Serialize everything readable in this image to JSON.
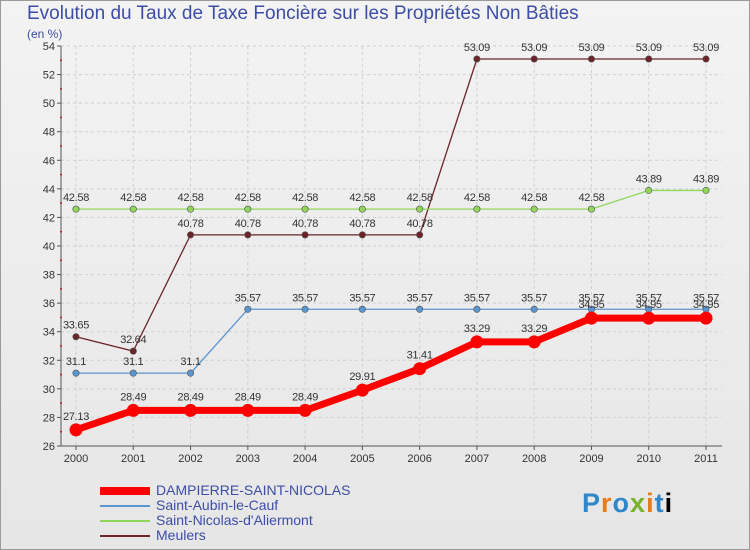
{
  "chart_data": {
    "type": "line",
    "title": "Evolution du Taux de Taxe Foncière sur les Propriétés Non Bâties",
    "ylabel": "(en %)",
    "xlabel": "",
    "ylim": [
      26,
      54
    ],
    "yticks": [
      26,
      28,
      30,
      32,
      34,
      36,
      38,
      40,
      42,
      44,
      46,
      48,
      50,
      52,
      54
    ],
    "categories": [
      "2000",
      "2001",
      "2002",
      "2003",
      "2004",
      "2005",
      "2006",
      "2007",
      "2008",
      "2009",
      "2010",
      "2011"
    ],
    "series": [
      {
        "name": "Meulers",
        "color": "#6b2428",
        "values": [
          33.65,
          32.64,
          40.78,
          40.78,
          40.78,
          40.78,
          40.78,
          53.09,
          53.09,
          53.09,
          53.09,
          53.09
        ],
        "labels": [
          "33.65",
          "32.64",
          "40.78",
          "40.78",
          "40.78",
          "40.78",
          "40.78",
          "53.09",
          "53.09",
          "53.09",
          "53.09",
          "53.09"
        ]
      },
      {
        "name": "Saint-Nicolas-d'Aliermont",
        "color": "#90d65a",
        "values": [
          42.58,
          42.58,
          42.58,
          42.58,
          42.58,
          42.58,
          42.58,
          42.58,
          42.58,
          42.58,
          43.89,
          43.89
        ],
        "labels": [
          "42.58",
          "42.58",
          "42.58",
          "42.58",
          "42.58",
          "42.58",
          "42.58",
          "42.58",
          "42.58",
          "42.58",
          "43.89",
          "43.89"
        ]
      },
      {
        "name": "Saint-Aubin-le-Cauf",
        "color": "#5a95cf",
        "values": [
          31.1,
          31.1,
          31.1,
          35.57,
          35.57,
          35.57,
          35.57,
          35.57,
          35.57,
          35.57,
          35.57,
          35.57
        ],
        "labels": [
          "31.1",
          "31.1",
          "31.1",
          "35.57",
          "35.57",
          "35.57",
          "35.57",
          "35.57",
          "35.57",
          "35.57",
          "35.57",
          "35.57"
        ]
      },
      {
        "name": "DAMPIERRE-SAINT-NICOLAS",
        "color": "#ff0000",
        "values": [
          27.13,
          28.49,
          28.49,
          28.49,
          28.49,
          29.91,
          31.41,
          33.29,
          33.29,
          34.95,
          34.95,
          34.95
        ],
        "labels": [
          "27.13",
          "28.49",
          "28.49",
          "28.49",
          "28.49",
          "29.91",
          "31.41",
          "33.29",
          "33.29",
          "34.95",
          "34.95",
          "34.95"
        ]
      }
    ],
    "legend": [
      {
        "name": "DAMPIERRE-SAINT-NICOLAS",
        "color": "#ff0000"
      },
      {
        "name": "Saint-Aubin-le-Cauf",
        "color": "#5a95cf"
      },
      {
        "name": "Saint-Nicolas-d'Aliermont",
        "color": "#90d65a"
      },
      {
        "name": "Meulers",
        "color": "#6b2428"
      }
    ],
    "legend_position": "bottom-left"
  },
  "logo": {
    "letters": [
      "P",
      "r",
      "o",
      "x",
      "i",
      "t",
      "i"
    ]
  }
}
